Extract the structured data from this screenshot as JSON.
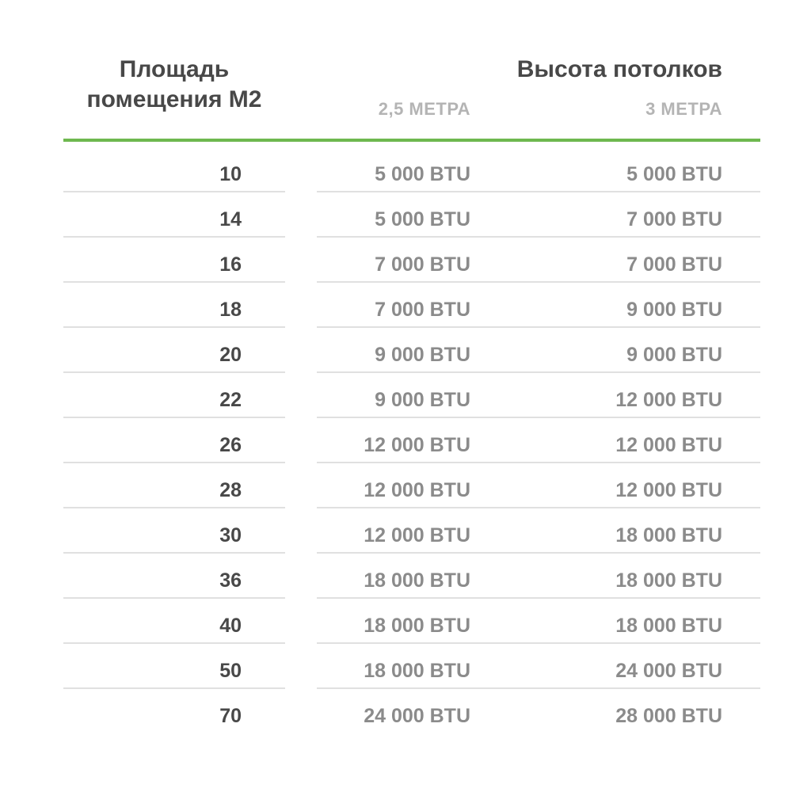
{
  "table": {
    "area_header": "Площадь помещения М2",
    "group_header": "Высота потолков",
    "sub_headers": [
      "2,5 МЕТРА",
      "3 МЕТРА"
    ],
    "rows": [
      {
        "area": "10",
        "btu_2_5m": "5 000 BTU",
        "btu_3m": "5 000 BTU"
      },
      {
        "area": "14",
        "btu_2_5m": "5 000 BTU",
        "btu_3m": "7 000 BTU"
      },
      {
        "area": "16",
        "btu_2_5m": "7 000 BTU",
        "btu_3m": "7 000 BTU"
      },
      {
        "area": "18",
        "btu_2_5m": "7 000 BTU",
        "btu_3m": "9 000 BTU"
      },
      {
        "area": "20",
        "btu_2_5m": "9 000 BTU",
        "btu_3m": "9 000 BTU"
      },
      {
        "area": "22",
        "btu_2_5m": "9 000 BTU",
        "btu_3m": "12 000 BTU"
      },
      {
        "area": "26",
        "btu_2_5m": "12 000 BTU",
        "btu_3m": "12 000 BTU"
      },
      {
        "area": "28",
        "btu_2_5m": "12 000 BTU",
        "btu_3m": "12 000 BTU"
      },
      {
        "area": "30",
        "btu_2_5m": "12 000 BTU",
        "btu_3m": "18 000 BTU"
      },
      {
        "area": "36",
        "btu_2_5m": "18 000 BTU",
        "btu_3m": "18 000 BTU"
      },
      {
        "area": "40",
        "btu_2_5m": "18 000 BTU",
        "btu_3m": "18 000 BTU"
      },
      {
        "area": "50",
        "btu_2_5m": "18 000 BTU",
        "btu_3m": "24 000 BTU"
      },
      {
        "area": "70",
        "btu_2_5m": "24 000 BTU",
        "btu_3m": "28 000 BTU"
      }
    ]
  },
  "colors": {
    "accent_green": "#6eb84f",
    "heading_text": "#484848",
    "value_text": "#8b8b8b",
    "subheader_text": "#b4b4b4",
    "separator": "#e0e0e0"
  },
  "chart_data": {
    "type": "table",
    "title": "Высота потолков",
    "columns": [
      "Площадь помещения М2",
      "2,5 МЕТРА",
      "3 МЕТРА"
    ],
    "rows": [
      [
        10,
        "5 000 BTU",
        "5 000 BTU"
      ],
      [
        14,
        "5 000 BTU",
        "7 000 BTU"
      ],
      [
        16,
        "7 000 BTU",
        "7 000 BTU"
      ],
      [
        18,
        "7 000 BTU",
        "9 000 BTU"
      ],
      [
        20,
        "9 000 BTU",
        "9 000 BTU"
      ],
      [
        22,
        "9 000 BTU",
        "12 000 BTU"
      ],
      [
        26,
        "12 000 BTU",
        "12 000 BTU"
      ],
      [
        28,
        "12 000 BTU",
        "12 000 BTU"
      ],
      [
        30,
        "12 000 BTU",
        "18 000 BTU"
      ],
      [
        36,
        "18 000 BTU",
        "18 000 BTU"
      ],
      [
        40,
        "18 000 BTU",
        "18 000 BTU"
      ],
      [
        50,
        "18 000 BTU",
        "24 000 BTU"
      ],
      [
        70,
        "24 000 BTU",
        "28 000 BTU"
      ]
    ]
  }
}
